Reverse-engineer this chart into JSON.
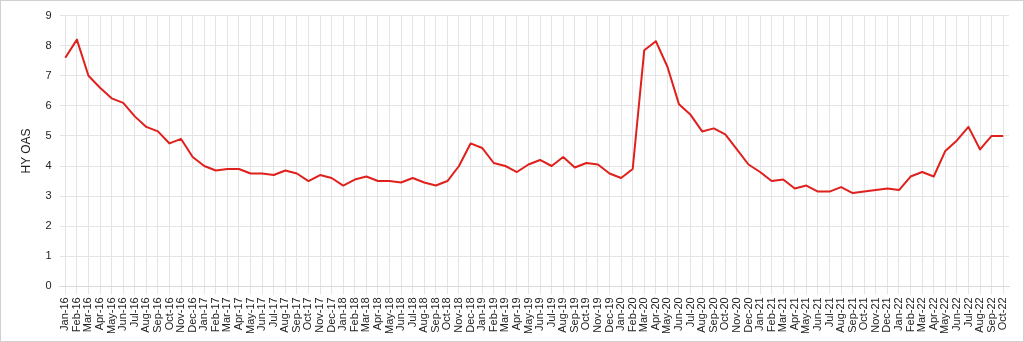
{
  "chart_data": {
    "type": "line",
    "ylabel": "HY OAS",
    "categories": [
      "Jan-16",
      "Feb-16",
      "Mar-16",
      "Apr-16",
      "May-16",
      "Jun-16",
      "Jul-16",
      "Aug-16",
      "Sep-16",
      "Oct-16",
      "Nov-16",
      "Dec-16",
      "Jan-17",
      "Feb-17",
      "Mar-17",
      "Apr-17",
      "May-17",
      "Jun-17",
      "Jul-17",
      "Aug-17",
      "Sep-17",
      "Oct-17",
      "Nov-17",
      "Dec-17",
      "Jan-18",
      "Feb-18",
      "Mar-18",
      "Apr-18",
      "May-18",
      "Jun-18",
      "Jul-18",
      "Aug-18",
      "Sep-18",
      "Oct-18",
      "Nov-18",
      "Dec-18",
      "Jan-19",
      "Feb-19",
      "Mar-19",
      "Apr-19",
      "May-19",
      "Jun-19",
      "Jul-19",
      "Aug-19",
      "Sep-19",
      "Oct-19",
      "Nov-19",
      "Dec-19",
      "Jan-20",
      "Feb-20",
      "Mar-20",
      "Apr-20",
      "May-20",
      "Jun-20",
      "Jul-20",
      "Aug-20",
      "Sep-20",
      "Oct-20",
      "Nov-20",
      "Dec-20",
      "Jan-21",
      "Feb-21",
      "Mar-21",
      "Apr-21",
      "May-21",
      "Jun-21",
      "Jul-21",
      "Aug-21",
      "Sep-21",
      "Oct-21",
      "Nov-21",
      "Dec-21",
      "Jan-22",
      "Feb-22",
      "Mar-22",
      "Apr-22",
      "May-22",
      "Jun-22",
      "Jul-22",
      "Aug-22",
      "Sep-22",
      "Oct-22"
    ],
    "series": [
      {
        "color": "#e0201c",
        "values": [
          7.6,
          8.2,
          7.0,
          6.6,
          6.25,
          6.1,
          5.65,
          5.3,
          5.15,
          4.75,
          4.9,
          4.3,
          4.0,
          3.85,
          3.9,
          3.9,
          3.75,
          3.75,
          3.7,
          3.85,
          3.75,
          3.5,
          3.7,
          3.6,
          3.35,
          3.55,
          3.65,
          3.5,
          3.5,
          3.45,
          3.6,
          3.45,
          3.35,
          3.5,
          4.0,
          4.75,
          4.6,
          4.1,
          4.0,
          3.8,
          4.05,
          4.2,
          4.0,
          4.3,
          3.95,
          4.1,
          4.05,
          3.75,
          3.6,
          3.9,
          7.85,
          8.15,
          7.3,
          6.05,
          5.7,
          5.15,
          5.25,
          5.05,
          4.55,
          4.05,
          3.8,
          3.5,
          3.55,
          3.25,
          3.35,
          3.15,
          3.15,
          3.3,
          3.1,
          3.15,
          3.2,
          3.25,
          3.2,
          3.65,
          3.8,
          3.65,
          4.5,
          4.85,
          5.3,
          4.55,
          5.0,
          5.0
        ]
      }
    ],
    "ylim": [
      0,
      9
    ],
    "yticks": [
      0,
      1,
      2,
      3,
      4,
      5,
      6,
      7,
      8,
      9
    ],
    "grid": true,
    "legend": false,
    "marker": "none",
    "line_style": "solid"
  }
}
